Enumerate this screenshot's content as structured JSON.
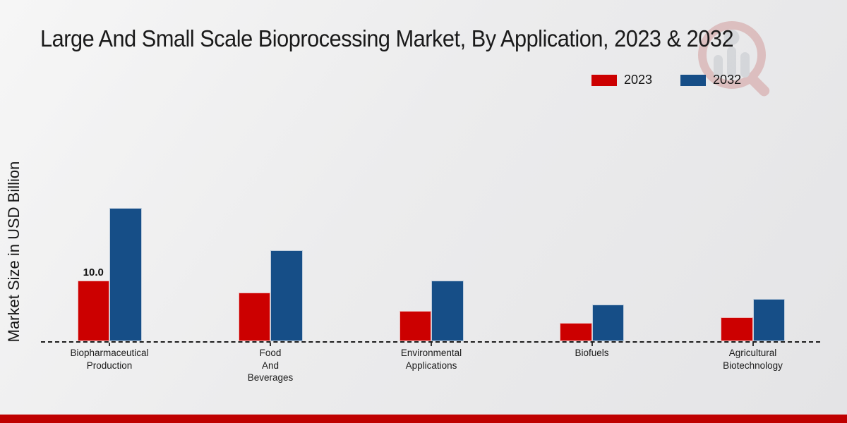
{
  "page": {
    "title": "Large And Small Scale Bioprocessing Market, By Application, 2023 & 2032"
  },
  "axes": {
    "ylabel": "Market Size in USD Billion"
  },
  "legend": {
    "items": [
      {
        "label": "2023",
        "color": "#cc0000"
      },
      {
        "label": "2032",
        "color": "#164e87"
      }
    ]
  },
  "watermark": {
    "icon": "market-research-future-logo",
    "ring_color": "#c97c7c",
    "figure_color": "#b6bac2"
  },
  "footer": {
    "color": "#bf0000"
  },
  "chart_data": {
    "type": "bar",
    "title": "Large And Small Scale Bioprocessing Market, By Application, 2023 & 2032",
    "xlabel": "",
    "ylabel": "Market Size in USD Billion",
    "categories": [
      "Biopharmaceutical Production",
      "Food And Beverages",
      "Environmental Applications",
      "Biofuels",
      "Agricultural Biotechnology"
    ],
    "category_label_lines": [
      [
        "Biopharmaceutical",
        "Production"
      ],
      [
        "Food",
        "And",
        "Beverages"
      ],
      [
        "Environmental",
        "Applications"
      ],
      [
        "Biofuels"
      ],
      [
        "Agricultural",
        "Biotechnology"
      ]
    ],
    "series": [
      {
        "name": "2023",
        "color": "#cc0000",
        "values": [
          10.0,
          8.0,
          5.0,
          3.0,
          4.0
        ]
      },
      {
        "name": "2032",
        "color": "#164e87",
        "values": [
          22.0,
          15.0,
          10.0,
          6.0,
          7.0
        ]
      }
    ],
    "bar_labels": [
      {
        "series_index": 0,
        "category_index": 0,
        "text": "10.0"
      }
    ],
    "ylim": [
      0,
      24
    ],
    "grid": false,
    "legend_position": "top-right",
    "baseline_style": "dashed",
    "y_axis_ticks_visible": false
  }
}
